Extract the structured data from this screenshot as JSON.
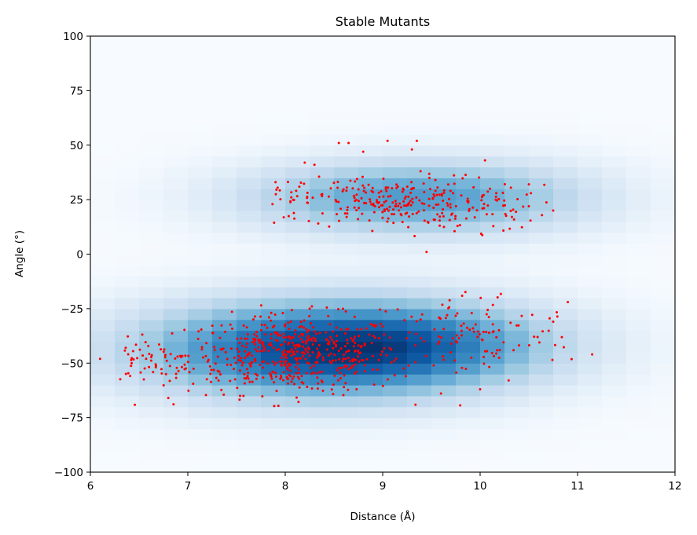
{
  "chart_data": {
    "type": "heatmap",
    "title": "Stable Mutants",
    "xlabel": "Distance (Å)",
    "ylabel": "Angle (°)",
    "xlim": [
      6,
      12
    ],
    "ylim": [
      -100,
      100
    ],
    "xticks": [
      "6",
      "7",
      "8",
      "9",
      "10",
      "11",
      "12"
    ],
    "yticks": [
      "−100",
      "−75",
      "−50",
      "−25",
      "0",
      "25",
      "50",
      "75",
      "100"
    ],
    "grid": false,
    "colormap": "Blues",
    "density_bins": {
      "x": 24,
      "y": 40
    },
    "density_components": [
      {
        "cx": 8.35,
        "cy": -44,
        "sx": 1.25,
        "sy": 15,
        "w": 1.0
      },
      {
        "cx": 9.5,
        "cy": -40,
        "sx": 1.0,
        "sy": 13,
        "w": 0.35
      },
      {
        "cx": 9.1,
        "cy": 26,
        "sx": 1.05,
        "sy": 11,
        "w": 0.55
      },
      {
        "cx": 10.2,
        "cy": 26,
        "sx": 0.9,
        "sy": 12,
        "w": 0.18
      }
    ],
    "scatter_color": "#ff0000",
    "scatter_clusters": [
      {
        "name": "lower-core",
        "cx": 8.1,
        "cy": -46,
        "sx": 0.55,
        "sy": 9,
        "n": 520
      },
      {
        "name": "lower-left-tail",
        "cx": 6.6,
        "cy": -49,
        "sx": 0.25,
        "sy": 5,
        "n": 60
      },
      {
        "name": "lower-right-tail",
        "cx": 9.9,
        "cy": -38,
        "sx": 0.55,
        "sy": 11,
        "n": 120
      },
      {
        "name": "upper-core",
        "cx": 9.1,
        "cy": 24,
        "sx": 0.45,
        "sy": 6,
        "n": 230
      },
      {
        "name": "upper-right",
        "cx": 10.2,
        "cy": 22,
        "sx": 0.3,
        "sy": 6,
        "n": 50
      },
      {
        "name": "upper-left",
        "cx": 8.0,
        "cy": 27,
        "sx": 0.25,
        "sy": 4,
        "n": 25
      }
    ],
    "scatter_outliers": [
      {
        "x": 6.1,
        "y": -48
      },
      {
        "x": 11.15,
        "y": -46
      },
      {
        "x": 10.9,
        "y": -22
      },
      {
        "x": 10.75,
        "y": -31
      },
      {
        "x": 10.75,
        "y": 20
      },
      {
        "x": 10.5,
        "y": 22
      },
      {
        "x": 9.45,
        "y": 1
      },
      {
        "x": 9.35,
        "y": 52
      },
      {
        "x": 9.05,
        "y": 52
      },
      {
        "x": 8.65,
        "y": 51
      },
      {
        "x": 8.55,
        "y": 51
      },
      {
        "x": 8.2,
        "y": 42
      },
      {
        "x": 8.3,
        "y": 41
      },
      {
        "x": 7.9,
        "y": 33
      },
      {
        "x": 6.8,
        "y": -66
      },
      {
        "x": 10.0,
        "y": -62
      },
      {
        "x": 10.05,
        "y": 43
      },
      {
        "x": 9.3,
        "y": 48
      },
      {
        "x": 8.8,
        "y": 47
      }
    ]
  }
}
